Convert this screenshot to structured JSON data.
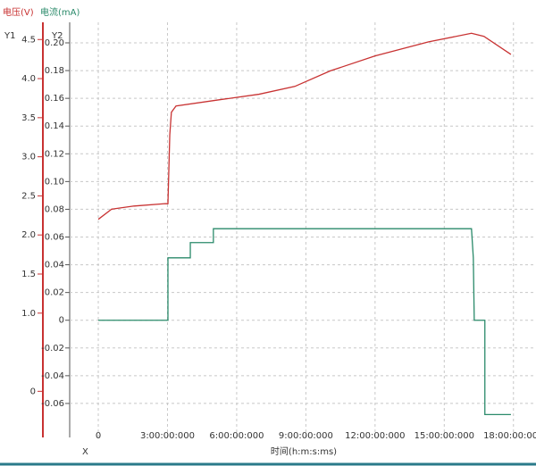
{
  "chart_data": {
    "type": "line",
    "y1_legend": "电压(V)",
    "y2_legend": "电流(mA)",
    "y1_label": "Y1",
    "y2_label": "Y2",
    "x_axis_name": "X",
    "x_label": "时间(h:m:s:ms)",
    "xlim": [
      -1.24,
      18.9
    ],
    "xticks": [
      0,
      {
        "value": 3,
        "label": "3:00:00:000"
      },
      {
        "value": 6,
        "label": "6:00:00:000"
      },
      {
        "value": 9,
        "label": "9:00:00:000"
      },
      {
        "value": 12,
        "label": "12:00:00:000"
      },
      {
        "value": 15,
        "label": "15:00:00:000"
      },
      {
        "value": 18,
        "label": "18:00:00:000"
      }
    ],
    "ylim": [
      -0.59,
      4.72
    ],
    "yticks": [
      0,
      {
        "value": 1,
        "label": "1.0"
      },
      1.5,
      {
        "value": 2,
        "label": "2.0"
      },
      2.5,
      {
        "value": 3,
        "label": "3.0"
      },
      3.5,
      {
        "value": 4,
        "label": "4.0"
      },
      4.5
    ],
    "y2lim": [
      -0.0845,
      0.2148
    ],
    "y2ticks": [
      -0.06,
      -0.04,
      -0.02,
      0,
      0.02,
      0.04,
      0.06,
      0.08,
      {
        "value": 0.1,
        "label": "0.10"
      },
      0.12,
      0.14,
      0.16,
      0.18,
      {
        "value": 0.2,
        "label": "0.20"
      }
    ],
    "grid": true,
    "series": [
      {
        "name": "电压(V)",
        "color": "#c83232",
        "axis": "y1",
        "x": [
          0,
          0.58,
          1.55,
          2.9,
          3.02,
          3.1,
          3.17,
          3.37,
          5.03,
          6.97,
          8.52,
          10.07,
          12.0,
          14.32,
          16.18,
          16.72,
          17.89
        ],
        "values": [
          2.2,
          2.33,
          2.37,
          2.4,
          2.4,
          3.28,
          3.57,
          3.65,
          3.72,
          3.8,
          3.9,
          4.1,
          4.29,
          4.47,
          4.58,
          4.54,
          4.31
        ]
      },
      {
        "name": "电流(mA)",
        "color": "#2a8a6a",
        "axis": "y2",
        "x": [
          0,
          3.02,
          3.02,
          3.99,
          3.99,
          4.99,
          4.99,
          16.18,
          16.26,
          16.3,
          16.76,
          16.76,
          17.89
        ],
        "values": [
          0,
          0,
          0.045,
          0.045,
          0.056,
          0.056,
          0.066,
          0.066,
          0.045,
          0,
          0,
          -0.068,
          -0.068
        ]
      }
    ]
  }
}
